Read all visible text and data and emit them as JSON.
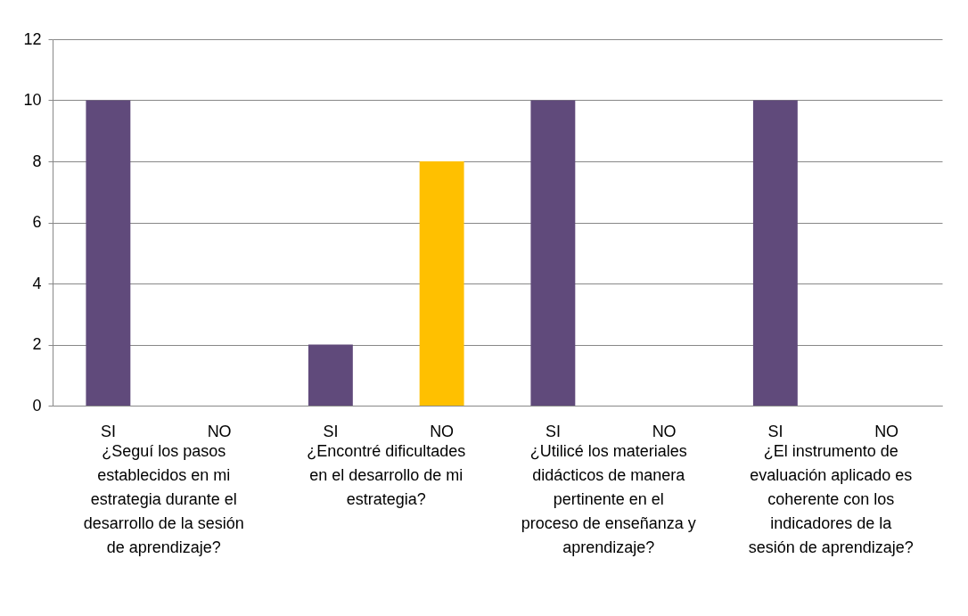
{
  "chart_data": {
    "type": "bar",
    "categories": [
      "SI",
      "NO",
      "SI",
      "NO",
      "SI",
      "NO",
      "SI",
      "NO"
    ],
    "values": [
      10,
      0,
      2,
      8,
      10,
      0,
      10,
      0
    ],
    "colors": [
      "#604a7b",
      "#ffc000",
      "#604a7b",
      "#ffc000",
      "#604a7b",
      "#ffc000",
      "#604a7b",
      "#ffc000"
    ],
    "ylim": [
      0,
      12
    ],
    "yticks": [
      0,
      2,
      4,
      6,
      8,
      10,
      12
    ],
    "grid": "y",
    "annotations": [
      "¿Seguí los pasos establecidos en mi estrategia durante el desarrollo de la sesión de aprendizaje?",
      "¿Encontré dificultades en el desarrollo de mi estrategia?",
      "¿Utilicé los materiales didácticos de manera pertinente en el proceso de enseñanza y aprendizaje?",
      "¿El instrumento de evaluación aplicado es coherente con los indicadores de la sesión de aprendizaje?"
    ]
  }
}
